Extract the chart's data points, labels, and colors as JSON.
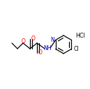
{
  "background_color": "#ffffff",
  "figsize": [
    1.29,
    1.28
  ],
  "dpi": 100,
  "lw": 0.9,
  "line_color": "#000000",
  "red": "#ff0000",
  "blue": "#0000cc",
  "black": "#000000",
  "hcl_text": "HCl",
  "nh_text": "NH",
  "n_text": "N",
  "o_text": "O",
  "cl_text": "Cl",
  "font_size": 5.5,
  "hcl_fontsize": 5.8
}
